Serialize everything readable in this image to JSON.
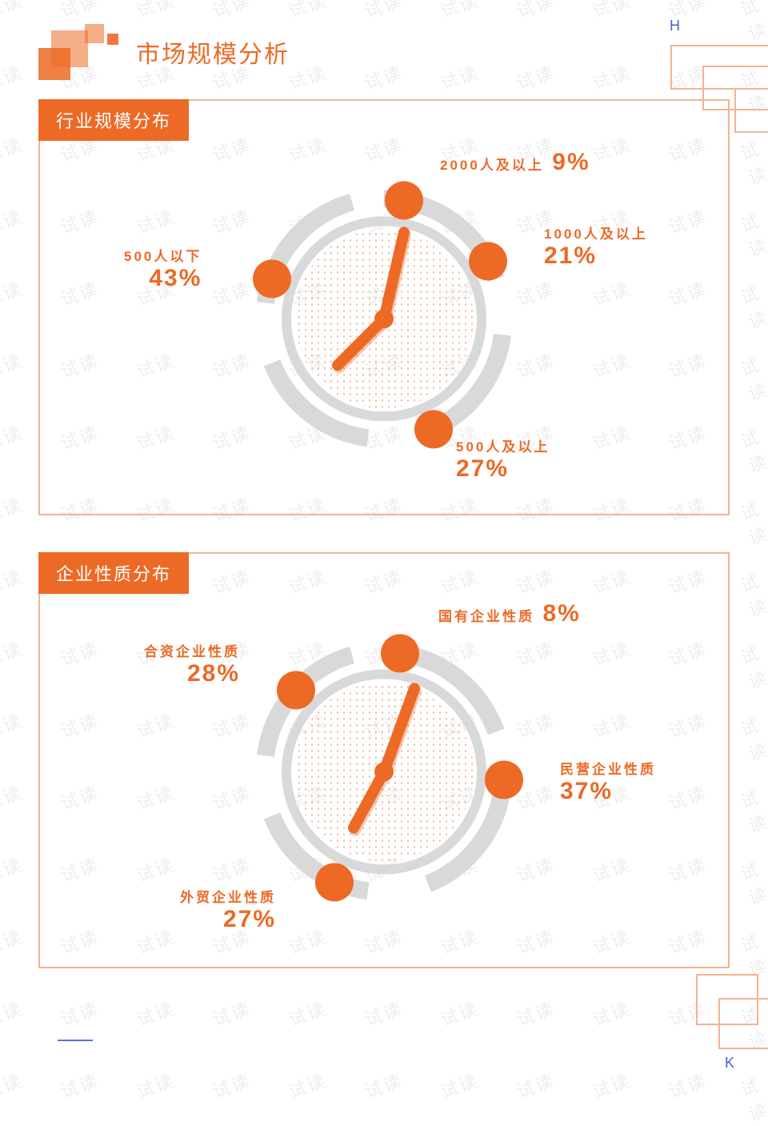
{
  "corners": {
    "top_right": "H",
    "bottom_right": "K"
  },
  "page_title": "市场规模分析",
  "watermark_text": "试读",
  "colors": {
    "accent": "#ec6a26",
    "accent_light_border": "#f3b48f",
    "ring_gray": "#d9d9d9",
    "hand_shadow": "#c5531a",
    "dot_fill": "#f7c9ae",
    "bg": "#ffffff",
    "wm": "#eeeeee",
    "blue": "#4a5fd0"
  },
  "panel1": {
    "title": "行业规模分布",
    "type": "radial-infographic",
    "clock": {
      "diameter": 320,
      "ring_outer_gray": true,
      "ring_gap_angles": [
        15,
        115,
        255,
        335
      ],
      "hand_angles_deg": [
        12,
        235
      ],
      "hand_lengths": [
        110,
        80
      ]
    },
    "points": [
      {
        "id": "p1",
        "label": "2000人及以上",
        "value": "9%",
        "angle_deg": 350,
        "label_side": "right-inline"
      },
      {
        "id": "p2",
        "label": "1000人及以上",
        "value": "21%",
        "angle_deg": 55,
        "label_side": "right"
      },
      {
        "id": "p3",
        "label": "500人及以上",
        "value": "27%",
        "angle_deg": 150,
        "label_side": "right-below"
      },
      {
        "id": "p4",
        "label": "500人以下",
        "value": "43%",
        "angle_deg": 280,
        "label_side": "left"
      }
    ]
  },
  "panel2": {
    "title": "企业性质分布",
    "type": "radial-infographic",
    "clock": {
      "diameter": 320,
      "hand_angles_deg": [
        20,
        212
      ],
      "hand_lengths": [
        110,
        78
      ]
    },
    "points": [
      {
        "id": "q1",
        "label": "国有企业性质",
        "value": "8%",
        "angle_deg": 355,
        "label_side": "right-inline"
      },
      {
        "id": "q2",
        "label": "合资企业性质",
        "value": "28%",
        "angle_deg": 305,
        "label_side": "left"
      },
      {
        "id": "q3",
        "label": "民营企业性质",
        "value": "37%",
        "angle_deg": 90,
        "label_side": "right"
      },
      {
        "id": "q4",
        "label": "外贸企业性质",
        "value": "27%",
        "angle_deg": 195,
        "label_side": "left-below"
      }
    ]
  },
  "typography": {
    "title_fontsize": 30,
    "panel_tab_fontsize": 22,
    "label_fontsize": 17,
    "pct_fontsize": 30
  }
}
